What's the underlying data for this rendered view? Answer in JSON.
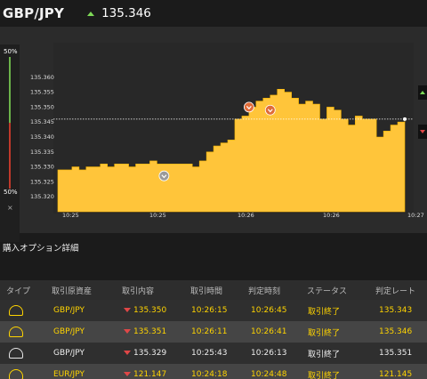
{
  "header": {
    "pair": "GBP/JPY",
    "price": "135.346",
    "direction_color": "#7ed957"
  },
  "side_meter": {
    "top_pct": "50%",
    "bottom_pct": "50%",
    "close": "×",
    "up_color": "#6bb34a",
    "down_color": "#c0392b"
  },
  "chart_data": {
    "type": "area",
    "title": "",
    "xlabel": "",
    "ylabel": "",
    "ylim": [
      135.315,
      135.365
    ],
    "x_ticks": [
      "10:25",
      "10:25",
      "10:26",
      "10:26",
      "10:27"
    ],
    "y_ticks": [
      "135.360",
      "135.355",
      "135.350",
      "135.345",
      "135.340",
      "135.335",
      "135.330",
      "135.325",
      "135.320"
    ],
    "reference_line": 135.346,
    "fill_color": "#ffc53a",
    "series": [
      {
        "values": [
          135.329,
          135.329,
          135.33,
          135.329,
          135.33,
          135.33,
          135.331,
          135.33,
          135.331,
          135.331,
          135.33,
          135.331,
          135.331,
          135.332,
          135.331,
          135.331,
          135.331,
          135.331,
          135.331,
          135.33,
          135.332,
          135.335,
          135.337,
          135.338,
          135.339,
          135.346,
          135.347,
          135.35,
          135.352,
          135.353,
          135.354,
          135.356,
          135.355,
          135.353,
          135.351,
          135.352,
          135.351,
          135.346,
          135.35,
          135.349,
          135.346,
          135.344,
          135.347,
          135.346,
          135.346,
          135.34,
          135.342,
          135.344,
          135.345,
          135.346
        ]
      }
    ],
    "markers": [
      {
        "index": 15,
        "value": 135.327,
        "color": "#9a9a9a",
        "icon": "sell-marker-icon"
      },
      {
        "index": 27,
        "value": 135.35,
        "color": "#e06b38",
        "icon": "down-marker-icon"
      },
      {
        "index": 30,
        "value": 135.349,
        "color": "#e06b38",
        "icon": "down-marker-icon"
      }
    ]
  },
  "section_title": "購入オプション詳細",
  "table": {
    "headers": [
      "タイプ",
      "取引原資産",
      "取引内容",
      "取引時間",
      "判定時刻",
      "ステータス",
      "判定レート"
    ],
    "rows": [
      {
        "pair": "GBP/JPY",
        "rate": "135.350",
        "time": "10:26:15",
        "judge": "10:26:45",
        "status": "取引終了",
        "judge_rate": "135.343",
        "highlight": true
      },
      {
        "pair": "GBP/JPY",
        "rate": "135.351",
        "time": "10:26:11",
        "judge": "10:26:41",
        "status": "取引終了",
        "judge_rate": "135.346",
        "highlight": true
      },
      {
        "pair": "GBP/JPY",
        "rate": "135.329",
        "time": "10:25:43",
        "judge": "10:26:13",
        "status": "取引終了",
        "judge_rate": "135.351",
        "highlight": false
      },
      {
        "pair": "EUR/JPY",
        "rate": "121.147",
        "time": "10:24:18",
        "judge": "10:24:48",
        "status": "取引終了",
        "judge_rate": "121.145",
        "highlight": true
      }
    ]
  }
}
